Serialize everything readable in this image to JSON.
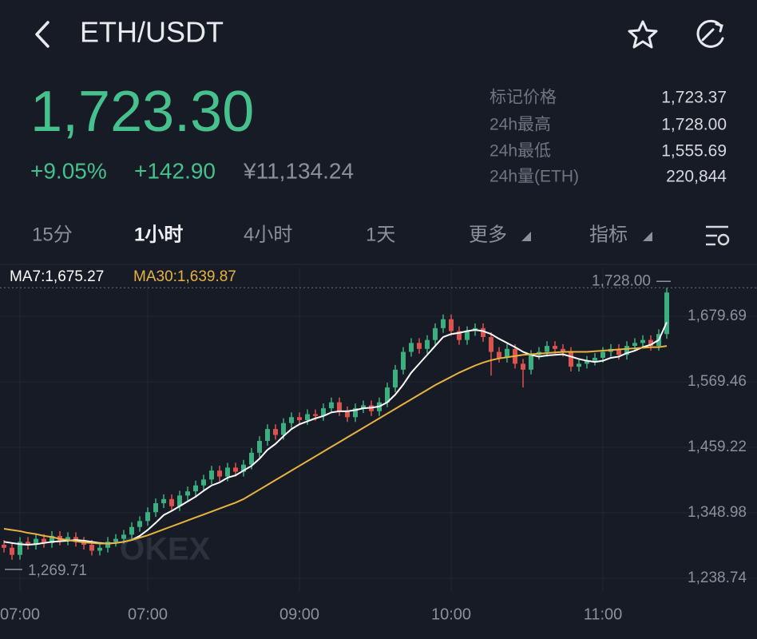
{
  "header": {
    "title": "ETH/USDT"
  },
  "price": {
    "last": "1,723.30",
    "change_pct": "+9.05%",
    "change": "+142.90",
    "cny": "¥11,134.24"
  },
  "stats": [
    {
      "label": "标记价格",
      "value": "1,723.37"
    },
    {
      "label": "24h最高",
      "value": "1,728.00"
    },
    {
      "label": "24h最低",
      "value": "1,555.69"
    },
    {
      "label": "24h量(ETH)",
      "value": "220,844"
    }
  ],
  "tabs": [
    "15分",
    "1小时",
    "4小时",
    "1天",
    "更多",
    "指标"
  ],
  "chart_data": {
    "type": "candlestick",
    "categories": [
      null,
      null,
      "07:00",
      null,
      null,
      null,
      null,
      null,
      null,
      null,
      null,
      null,
      null,
      null,
      null,
      null,
      null,
      null,
      "07:00",
      null,
      null,
      null,
      null,
      null,
      null,
      null,
      null,
      null,
      null,
      null,
      null,
      null,
      null,
      null,
      null,
      null,
      null,
      "09:00",
      null,
      null,
      null,
      null,
      null,
      null,
      null,
      null,
      null,
      null,
      null,
      null,
      null,
      null,
      null,
      null,
      null,
      null,
      "10:00",
      null,
      null,
      null,
      null,
      null,
      null,
      null,
      null,
      null,
      null,
      null,
      null,
      null,
      null,
      null,
      null,
      null,
      null,
      "11:00",
      null,
      null,
      null,
      null,
      null,
      null,
      null,
      null
    ],
    "open": [
      1295,
      1290,
      1278,
      1300,
      1295,
      1305,
      1298,
      1310,
      1302,
      1308,
      1300,
      1295,
      1285,
      1290,
      1300,
      1305,
      1312,
      1325,
      1335,
      1350,
      1365,
      1372,
      1360,
      1378,
      1385,
      1395,
      1405,
      1420,
      1410,
      1425,
      1418,
      1430,
      1450,
      1470,
      1490,
      1480,
      1500,
      1510,
      1505,
      1515,
      1512,
      1525,
      1535,
      1520,
      1510,
      1525,
      1530,
      1520,
      1535,
      1560,
      1590,
      1620,
      1635,
      1625,
      1640,
      1660,
      1675,
      1655,
      1640,
      1655,
      1660,
      1645,
      1620,
      1610,
      1625,
      1600,
      1590,
      1615,
      1620,
      1630,
      1625,
      1620,
      1595,
      1600,
      1605,
      1610,
      1620,
      1625,
      1615,
      1630,
      1635,
      1640,
      1630,
      1650
    ],
    "high": [
      1303,
      1298,
      1308,
      1308,
      1313,
      1313,
      1318,
      1318,
      1316,
      1316,
      1308,
      1303,
      1298,
      1308,
      1313,
      1320,
      1333,
      1343,
      1358,
      1373,
      1380,
      1380,
      1386,
      1393,
      1403,
      1413,
      1428,
      1428,
      1433,
      1433,
      1438,
      1458,
      1478,
      1498,
      1498,
      1508,
      1518,
      1518,
      1523,
      1523,
      1533,
      1543,
      1543,
      1528,
      1533,
      1538,
      1538,
      1543,
      1568,
      1598,
      1628,
      1643,
      1643,
      1648,
      1668,
      1683,
      1683,
      1663,
      1663,
      1668,
      1668,
      1653,
      1628,
      1633,
      1633,
      1608,
      1623,
      1628,
      1638,
      1638,
      1633,
      1628,
      1608,
      1613,
      1618,
      1628,
      1633,
      1633,
      1638,
      1643,
      1648,
      1648,
      1658,
      1728
    ],
    "low": [
      1282,
      1269.71,
      1270,
      1287,
      1287,
      1290,
      1290,
      1294,
      1294,
      1292,
      1287,
      1277,
      1277,
      1282,
      1292,
      1297,
      1304,
      1317,
      1327,
      1342,
      1357,
      1352,
      1352,
      1370,
      1377,
      1387,
      1397,
      1402,
      1402,
      1410,
      1410,
      1422,
      1442,
      1462,
      1472,
      1472,
      1492,
      1497,
      1497,
      1504,
      1504,
      1517,
      1512,
      1502,
      1502,
      1517,
      1512,
      1512,
      1527,
      1552,
      1582,
      1612,
      1617,
      1617,
      1632,
      1652,
      1647,
      1632,
      1632,
      1647,
      1637,
      1580,
      1602,
      1602,
      1592,
      1560,
      1582,
      1607,
      1612,
      1617,
      1612,
      1587,
      1587,
      1592,
      1597,
      1602,
      1612,
      1607,
      1607,
      1622,
      1627,
      1622,
      1622,
      1642
    ],
    "close": [
      1290,
      1278,
      1300,
      1295,
      1305,
      1298,
      1310,
      1302,
      1308,
      1300,
      1295,
      1285,
      1290,
      1300,
      1305,
      1312,
      1325,
      1335,
      1350,
      1365,
      1372,
      1360,
      1378,
      1385,
      1395,
      1405,
      1420,
      1410,
      1425,
      1418,
      1430,
      1450,
      1470,
      1490,
      1480,
      1500,
      1510,
      1505,
      1515,
      1512,
      1525,
      1535,
      1520,
      1510,
      1525,
      1530,
      1520,
      1535,
      1560,
      1590,
      1620,
      1635,
      1625,
      1640,
      1660,
      1675,
      1655,
      1640,
      1655,
      1660,
      1645,
      1620,
      1610,
      1625,
      1600,
      1590,
      1615,
      1620,
      1630,
      1625,
      1620,
      1595,
      1600,
      1605,
      1610,
      1620,
      1625,
      1615,
      1630,
      1635,
      1640,
      1630,
      1650,
      1720
    ],
    "up_color": "#3dae7f",
    "down_color": "#d9534f",
    "series": [
      {
        "name": "MA7:1,675.27",
        "color": "#ffffff",
        "values": [
          1300,
          1298,
          1296,
          1295,
          1296,
          1298,
          1300,
          1301,
          1302,
          1303,
          1302,
          1300,
          1298,
          1297,
          1298,
          1300,
          1303,
          1310,
          1320,
          1332,
          1345,
          1352,
          1360,
          1368,
          1376,
          1386,
          1395,
          1400,
          1408,
          1412,
          1420,
          1428,
          1440,
          1455,
          1465,
          1478,
          1490,
          1498,
          1503,
          1508,
          1512,
          1518,
          1520,
          1520,
          1522,
          1525,
          1526,
          1528,
          1535,
          1548,
          1565,
          1585,
          1600,
          1615,
          1630,
          1645,
          1650,
          1652,
          1655,
          1657,
          1655,
          1650,
          1642,
          1635,
          1628,
          1620,
          1615,
          1612,
          1614,
          1615,
          1616,
          1612,
          1608,
          1605,
          1603,
          1605,
          1610,
          1612,
          1618,
          1622,
          1628,
          1632,
          1640,
          1670
        ]
      },
      {
        "name": "MA30:1,639.87",
        "color": "#e8b33f",
        "values": [
          1322,
          1320,
          1318,
          1315,
          1313,
          1310,
          1308,
          1305,
          1303,
          1301,
          1299,
          1298,
          1297,
          1297,
          1298,
          1300,
          1303,
          1307,
          1311,
          1316,
          1321,
          1326,
          1331,
          1336,
          1341,
          1346,
          1351,
          1356,
          1361,
          1366,
          1372,
          1380,
          1388,
          1396,
          1404,
          1412,
          1420,
          1428,
          1436,
          1444,
          1452,
          1460,
          1468,
          1476,
          1484,
          1492,
          1500,
          1508,
          1516,
          1524,
          1532,
          1540,
          1548,
          1556,
          1564,
          1571,
          1578,
          1585,
          1591,
          1597,
          1602,
          1606,
          1609,
          1611,
          1613,
          1615,
          1616,
          1617,
          1618,
          1619,
          1620,
          1620,
          1620,
          1620,
          1621,
          1622,
          1623,
          1624,
          1625,
          1626,
          1627,
          1628,
          1628,
          1630
        ]
      }
    ],
    "ylim": [
      1217,
      1762
    ],
    "yticks": [
      {
        "value": 1238.74,
        "label": "1,238.74"
      },
      {
        "value": 1348.98,
        "label": "1,348.98"
      },
      {
        "value": 1459.22,
        "label": "1,459.22"
      },
      {
        "value": 1569.46,
        "label": "1,569.46"
      },
      {
        "value": 1679.69,
        "label": "1,679.69"
      }
    ],
    "annotations": [
      {
        "value": 1728,
        "label": "1,728.00"
      },
      {
        "value": 1269.71,
        "label": "1,269.71"
      }
    ],
    "watermark": "OKEX",
    "grid": true
  }
}
